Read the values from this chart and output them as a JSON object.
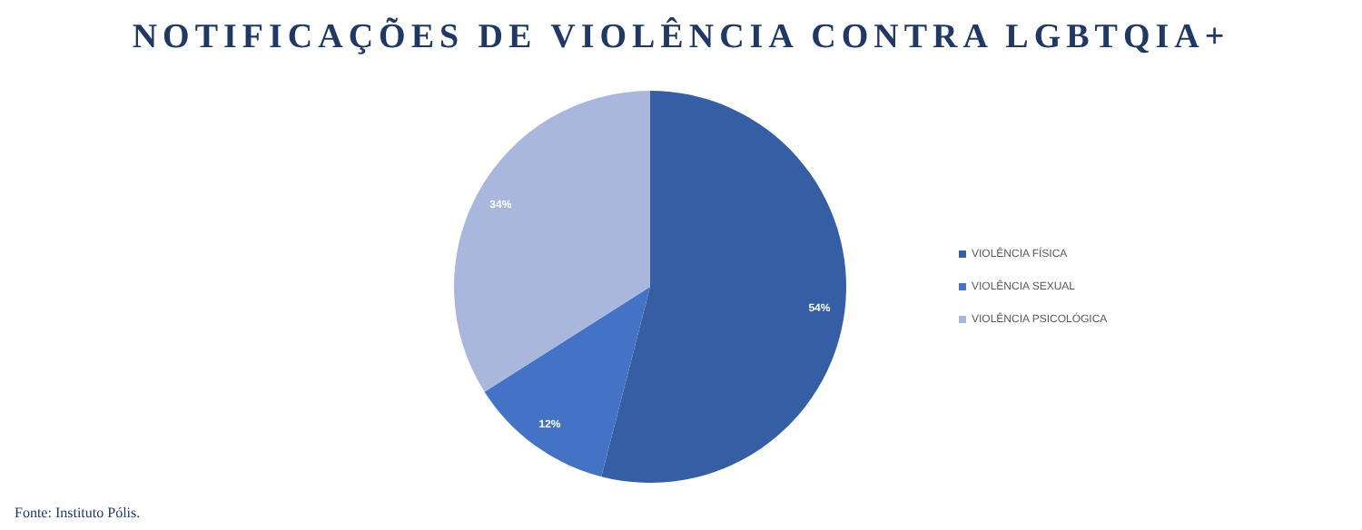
{
  "chart_data": {
    "type": "pie",
    "title": "NOTIFICAÇÕES DE VIOLÊNCIA CONTRA LGBTQIA+",
    "categories": [
      "VIOLÊNCIA FÍSICA",
      "VIOLÊNCIA SEXUAL",
      "VIOLÊNCIA PSICOLÓGICA"
    ],
    "values": [
      54,
      12,
      34
    ],
    "colors": [
      "#355ea4",
      "#4472c4",
      "#a9b7dc"
    ],
    "value_labels": [
      "54%",
      "12%",
      "34%"
    ],
    "legend": "right",
    "annotations": [
      "Fonte: Instituto Pólis."
    ]
  }
}
